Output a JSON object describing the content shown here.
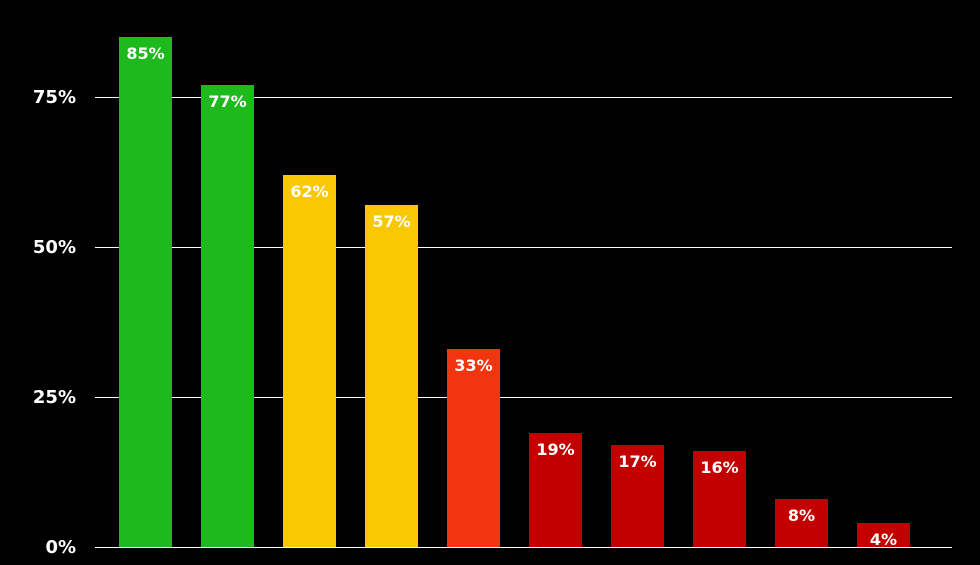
{
  "chart_data": {
    "type": "bar",
    "categories": [
      "",
      "",
      "",
      "",
      "",
      "",
      "",
      "",
      "",
      ""
    ],
    "values": [
      85,
      77,
      62,
      57,
      33,
      19,
      17,
      16,
      8,
      4
    ],
    "value_labels": [
      "85%",
      "77%",
      "62%",
      "57%",
      "33%",
      "19%",
      "17%",
      "16%",
      "8%",
      "4%"
    ],
    "bar_colors": [
      "#1db91d",
      "#1db91d",
      "#f9c800",
      "#f9c800",
      "#f0350f",
      "#c30000",
      "#c30000",
      "#c30000",
      "#c30000",
      "#c30000"
    ],
    "y_ticks": [
      {
        "value": 0,
        "label": "0%"
      },
      {
        "value": 25,
        "label": "25%"
      },
      {
        "value": 50,
        "label": "50%"
      },
      {
        "value": 75,
        "label": "75%"
      }
    ],
    "ylim": [
      0,
      88
    ],
    "grid": true,
    "title": "",
    "xlabel": "",
    "ylabel": "",
    "background": "#000000",
    "gridline_color": "#ffffff",
    "text_color": "#ffffff"
  }
}
